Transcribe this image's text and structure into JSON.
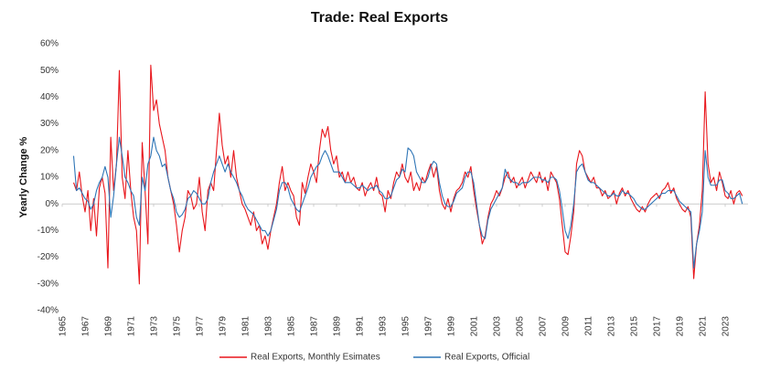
{
  "chart_data": {
    "type": "line",
    "title": "Trade: Real Exports",
    "y_label": "Yearly Change %",
    "xlim": [
      1965,
      2025
    ],
    "xticks": [
      1965,
      1967,
      1969,
      1971,
      1973,
      1975,
      1977,
      1979,
      1981,
      1983,
      1985,
      1987,
      1989,
      1991,
      1993,
      1995,
      1997,
      1999,
      2001,
      2003,
      2005,
      2007,
      2009,
      2011,
      2013,
      2015,
      2017,
      2019,
      2021,
      2023
    ],
    "ylim": [
      -40,
      60
    ],
    "yticks": [
      {
        "value": -40,
        "label": "-40%"
      },
      {
        "value": -30,
        "label": "-30%"
      },
      {
        "value": -20,
        "label": "-20%"
      },
      {
        "value": -10,
        "label": "-10%"
      },
      {
        "value": 0,
        "label": "0%"
      },
      {
        "value": 10,
        "label": "10%"
      },
      {
        "value": 20,
        "label": "20%"
      },
      {
        "value": 30,
        "label": "30%"
      },
      {
        "value": 40,
        "label": "40%"
      },
      {
        "value": 50,
        "label": "50%"
      },
      {
        "value": 60,
        "label": "60%"
      }
    ],
    "grid": false,
    "legend": "bottom",
    "x": [
      1966,
      1966.25,
      1966.5,
      1966.75,
      1967,
      1967.25,
      1967.5,
      1967.75,
      1968,
      1968.25,
      1968.5,
      1968.75,
      1969,
      1969.25,
      1969.5,
      1969.75,
      1970,
      1970.25,
      1970.5,
      1970.75,
      1971,
      1971.25,
      1971.5,
      1971.75,
      1972,
      1972.25,
      1972.5,
      1972.75,
      1973,
      1973.25,
      1973.5,
      1973.75,
      1974,
      1974.25,
      1974.5,
      1974.75,
      1975,
      1975.25,
      1975.5,
      1975.75,
      1976,
      1976.25,
      1976.5,
      1976.75,
      1977,
      1977.25,
      1977.5,
      1977.75,
      1978,
      1978.25,
      1978.5,
      1978.75,
      1979,
      1979.25,
      1979.5,
      1979.75,
      1980,
      1980.25,
      1980.5,
      1980.75,
      1981,
      1981.25,
      1981.5,
      1981.75,
      1982,
      1982.25,
      1982.5,
      1982.75,
      1983,
      1983.25,
      1983.5,
      1983.75,
      1984,
      1984.25,
      1984.5,
      1984.75,
      1985,
      1985.25,
      1985.5,
      1985.75,
      1986,
      1986.25,
      1986.5,
      1986.75,
      1987,
      1987.25,
      1987.5,
      1987.75,
      1988,
      1988.25,
      1988.5,
      1988.75,
      1989,
      1989.25,
      1989.5,
      1989.75,
      1990,
      1990.25,
      1990.5,
      1990.75,
      1991,
      1991.25,
      1991.5,
      1991.75,
      1992,
      1992.25,
      1992.5,
      1992.75,
      1993,
      1993.25,
      1993.5,
      1993.75,
      1994,
      1994.25,
      1994.5,
      1994.75,
      1995,
      1995.25,
      1995.5,
      1995.75,
      1996,
      1996.25,
      1996.5,
      1996.75,
      1997,
      1997.25,
      1997.5,
      1997.75,
      1998,
      1998.25,
      1998.5,
      1998.75,
      1999,
      1999.25,
      1999.5,
      1999.75,
      2000,
      2000.25,
      2000.5,
      2000.75,
      2001,
      2001.25,
      2001.5,
      2001.75,
      2002,
      2002.25,
      2002.5,
      2002.75,
      2003,
      2003.25,
      2003.5,
      2003.75,
      2004,
      2004.25,
      2004.5,
      2004.75,
      2005,
      2005.25,
      2005.5,
      2005.75,
      2006,
      2006.25,
      2006.5,
      2006.75,
      2007,
      2007.25,
      2007.5,
      2007.75,
      2008,
      2008.25,
      2008.5,
      2008.75,
      2009,
      2009.25,
      2009.5,
      2009.75,
      2010,
      2010.25,
      2010.5,
      2010.75,
      2011,
      2011.25,
      2011.5,
      2011.75,
      2012,
      2012.25,
      2012.5,
      2012.75,
      2013,
      2013.25,
      2013.5,
      2013.75,
      2014,
      2014.25,
      2014.5,
      2014.75,
      2015,
      2015.25,
      2015.5,
      2015.75,
      2016,
      2016.25,
      2016.5,
      2016.75,
      2017,
      2017.25,
      2017.5,
      2017.75,
      2018,
      2018.25,
      2018.5,
      2018.75,
      2019,
      2019.25,
      2019.5,
      2019.75,
      2020,
      2020.25,
      2020.5,
      2020.75,
      2021,
      2021.25,
      2021.5,
      2021.75,
      2022,
      2022.25,
      2022.5,
      2022.75,
      2023,
      2023.25,
      2023.5,
      2023.75,
      2024,
      2024.25,
      2024.5
    ],
    "series": [
      {
        "name": "Real Exports, Monthly Esimates",
        "color": "#e8151b",
        "values": [
          8,
          5,
          12,
          3,
          -3,
          5,
          -10,
          2,
          -12,
          6,
          10,
          4,
          -24,
          25,
          5,
          15,
          50,
          10,
          2,
          20,
          5,
          -5,
          -10,
          -30,
          23,
          5,
          -15,
          52,
          35,
          39,
          30,
          25,
          20,
          10,
          5,
          0,
          -8,
          -18,
          -10,
          -5,
          5,
          3,
          -2,
          0,
          10,
          -3,
          -10,
          5,
          8,
          5,
          20,
          34,
          22,
          15,
          18,
          10,
          20,
          10,
          5,
          0,
          -2,
          -5,
          -8,
          -3,
          -10,
          -8,
          -15,
          -12,
          -17,
          -10,
          -5,
          0,
          8,
          14,
          5,
          8,
          5,
          3,
          -5,
          -8,
          8,
          4,
          10,
          15,
          12,
          8,
          20,
          28,
          25,
          29,
          20,
          15,
          18,
          10,
          12,
          8,
          12,
          8,
          10,
          6,
          5,
          8,
          3,
          6,
          8,
          5,
          10,
          4,
          3,
          -3,
          5,
          2,
          8,
          12,
          10,
          15,
          10,
          8,
          12,
          5,
          8,
          5,
          10,
          8,
          12,
          15,
          10,
          14,
          5,
          0,
          -2,
          2,
          -3,
          2,
          5,
          6,
          8,
          12,
          10,
          14,
          5,
          -2,
          -8,
          -15,
          -12,
          -5,
          0,
          2,
          5,
          3,
          6,
          10,
          12,
          8,
          10,
          6,
          8,
          10,
          6,
          9,
          12,
          10,
          8,
          12,
          8,
          10,
          5,
          12,
          10,
          8,
          2,
          -8,
          -18,
          -19,
          -12,
          -3,
          15,
          20,
          18,
          12,
          10,
          8,
          10,
          6,
          6,
          3,
          5,
          2,
          3,
          5,
          0,
          4,
          6,
          3,
          5,
          2,
          0,
          -2,
          -3,
          -1,
          -3,
          0,
          2,
          3,
          4,
          2,
          5,
          6,
          8,
          4,
          6,
          2,
          0,
          -2,
          -3,
          -1,
          -5,
          -28,
          -15,
          -8,
          5,
          42,
          15,
          8,
          10,
          5,
          12,
          8,
          3,
          2,
          5,
          0,
          4,
          5,
          3
        ]
      },
      {
        "name": "Real Exports, Official",
        "color": "#2e75b6",
        "values": [
          18,
          5,
          6,
          4,
          2,
          1,
          -2,
          0,
          5,
          8,
          10,
          14,
          10,
          -5,
          3,
          15,
          25,
          18,
          10,
          8,
          5,
          3,
          -5,
          -8,
          10,
          5,
          15,
          18,
          25,
          20,
          18,
          14,
          15,
          10,
          5,
          2,
          -3,
          -5,
          -4,
          -2,
          2,
          3,
          5,
          4,
          2,
          0,
          0,
          2,
          8,
          12,
          15,
          18,
          15,
          12,
          15,
          12,
          10,
          8,
          5,
          3,
          0,
          -2,
          -3,
          -4,
          -6,
          -8,
          -10,
          -10,
          -12,
          -10,
          -6,
          -2,
          5,
          8,
          8,
          6,
          2,
          0,
          -2,
          -3,
          0,
          3,
          6,
          10,
          12,
          14,
          15,
          18,
          20,
          18,
          15,
          12,
          12,
          12,
          10,
          8,
          8,
          8,
          7,
          6,
          6,
          7,
          6,
          5,
          6,
          6,
          7,
          5,
          4,
          2,
          2,
          3,
          6,
          9,
          10,
          13,
          12,
          21,
          20,
          18,
          12,
          10,
          8,
          8,
          10,
          14,
          16,
          15,
          8,
          3,
          0,
          -1,
          -1,
          1,
          4,
          5,
          6,
          10,
          12,
          12,
          8,
          0,
          -8,
          -12,
          -13,
          -6,
          -2,
          0,
          2,
          4,
          6,
          13,
          10,
          9,
          8,
          8,
          7,
          8,
          8,
          8,
          9,
          10,
          10,
          10,
          9,
          9,
          8,
          10,
          10,
          9,
          5,
          -2,
          -10,
          -13,
          -8,
          0,
          12,
          14,
          15,
          12,
          9,
          8,
          8,
          7,
          6,
          5,
          4,
          3,
          3,
          4,
          3,
          3,
          5,
          4,
          4,
          3,
          2,
          0,
          -1,
          -2,
          -2,
          -1,
          0,
          1,
          2,
          3,
          4,
          4,
          5,
          5,
          5,
          3,
          1,
          0,
          -1,
          -2,
          -3,
          -24,
          -15,
          -10,
          -3,
          20,
          10,
          7,
          7,
          7,
          9,
          9,
          5,
          4,
          2,
          2,
          3,
          4,
          0
        ]
      }
    ]
  }
}
